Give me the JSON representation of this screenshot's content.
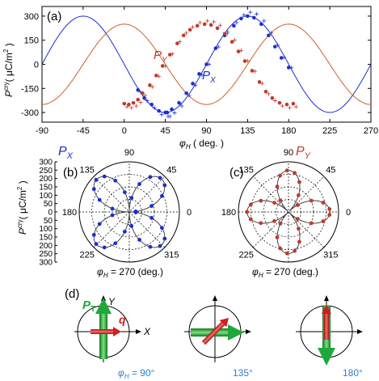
{
  "colors": {
    "px": "#1a2fd0",
    "py": "#c0392b",
    "pyLine": "#d0602a",
    "green": "#1fa83a",
    "arrowRed": "#d02020",
    "phiBlue": "#2f7fc8"
  },
  "panel_a": {
    "label": "(a)",
    "ylabel": "P",
    "ylabel_sup": "cry",
    "yunit": "( μC/m",
    "yunit_sup": "2",
    "yunit_close": " )",
    "xlabel_sym": "φ",
    "xlabel_sub": "H",
    "xlabel_unit": " ( deg. )",
    "series_px_label": "P",
    "series_px_sub": "X",
    "series_py_label": "P",
    "series_py_sub": "Y"
  },
  "chart_data": {
    "type": "line",
    "xlabel": "φH ( deg. )",
    "ylabel": "Pcry ( μC/m2 )",
    "xlim": [
      -90,
      270
    ],
    "ylim": [
      -360,
      360
    ],
    "xticks": [
      -90,
      -45,
      0,
      45,
      90,
      135,
      180,
      225,
      270
    ],
    "yticks": [
      -300,
      -150,
      0,
      150,
      300
    ],
    "series": [
      {
        "name": "PX",
        "amplitude": 300,
        "phase_deg": 45,
        "period_deg": 180,
        "points_x": [
          15,
          22,
          30,
          38,
          45,
          47,
          52,
          60,
          68,
          75,
          82,
          90,
          100,
          110,
          120,
          128,
          135,
          142,
          150,
          158,
          165,
          172,
          180
        ],
        "points_y": [
          -160,
          -210,
          -250,
          -290,
          -300,
          -300,
          -280,
          -240,
          -180,
          -120,
          -60,
          0,
          100,
          180,
          240,
          285,
          300,
          290,
          250,
          180,
          110,
          40,
          -20
        ]
      },
      {
        "name": "PY",
        "amplitude": 250,
        "phase_deg": 90,
        "period_deg": 180,
        "points_x": [
          0,
          5,
          10,
          15,
          20,
          28,
          35,
          42,
          50,
          58,
          65,
          72,
          80,
          88,
          95,
          102,
          110,
          118,
          125,
          132,
          140,
          148,
          155,
          162,
          170,
          178,
          185
        ],
        "points_y": [
          -245,
          -250,
          -240,
          -220,
          -180,
          -130,
          -70,
          -10,
          60,
          130,
          180,
          215,
          240,
          250,
          245,
          225,
          190,
          140,
          80,
          20,
          -40,
          -110,
          -170,
          -210,
          -240,
          -250,
          -245
        ]
      }
    ]
  },
  "panel_b": {
    "label": "(b)",
    "title": "P",
    "title_sub": "X",
    "angles": [
      "90",
      "45",
      "0",
      "315",
      "270",
      "225",
      "180",
      "135"
    ],
    "radial_ticks": [
      "300",
      "250",
      "200",
      "150",
      "100",
      "50",
      "0",
      "50",
      "100",
      "150",
      "200",
      "250",
      "300"
    ],
    "ylabel": "P",
    "ylabel_sup": "cry",
    "yunit": "( μC/m",
    "yunit_sup": "2",
    "yunit_close": " )",
    "bottom_sym": "φ",
    "bottom_sub": "H",
    "bottom_text": " = 270 (deg.)"
  },
  "panel_c": {
    "label": "(c)",
    "title": "P",
    "title_sub": "Y",
    "angles": [
      "90",
      "45",
      "0",
      "315",
      "270",
      "225",
      "180",
      "135"
    ],
    "bottom_sym": "φ",
    "bottom_sub": "H",
    "bottom_text": " = 270 (deg.)"
  },
  "panel_d": {
    "label": "(d)",
    "pt_label": "P",
    "pt_sub": "T",
    "q_label": "q",
    "x_label": "X",
    "y_label": "Y",
    "cap1_sym": "φ",
    "cap1_sub": "H",
    "cap1_text": " = 90°",
    "cap2": "135°",
    "cap3": "180°"
  }
}
